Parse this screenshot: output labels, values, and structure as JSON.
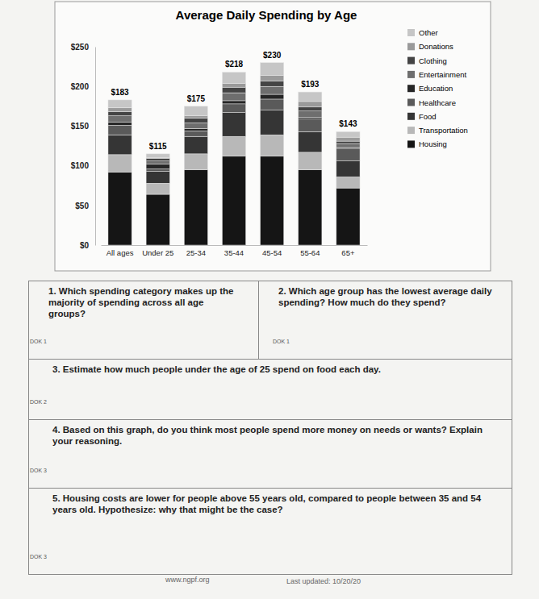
{
  "chart_data": {
    "type": "bar",
    "title": "Average Daily Spending by Age",
    "stacked": true,
    "grid": false,
    "legend": "right",
    "categories": [
      "All ages",
      "Under 25",
      "25-34",
      "35-44",
      "45-54",
      "55-64",
      "65+"
    ],
    "series": [
      {
        "name": "Housing",
        "color": "#151515",
        "values": [
          92,
          64,
          95,
          112,
          112,
          95,
          72
        ]
      },
      {
        "name": "Transportation",
        "color": "#b8b8b8",
        "values": [
          22,
          14,
          20,
          25,
          27,
          22,
          14
        ]
      },
      {
        "name": "Food",
        "color": "#353535",
        "values": [
          25,
          15,
          22,
          30,
          31,
          26,
          20
        ]
      },
      {
        "name": "Healthcare",
        "color": "#5a5a5a",
        "values": [
          12,
          3,
          7,
          11,
          14,
          16,
          16
        ]
      },
      {
        "name": "Education",
        "color": "#262626",
        "values": [
          4,
          6,
          3,
          4,
          6,
          2,
          1
        ]
      },
      {
        "name": "Entertainment",
        "color": "#6e6e6e",
        "values": [
          8,
          4,
          7,
          10,
          10,
          8,
          5
        ]
      },
      {
        "name": "Clothing",
        "color": "#444444",
        "values": [
          5,
          3,
          6,
          7,
          7,
          5,
          3
        ]
      },
      {
        "name": "Donations",
        "color": "#9a9a9a",
        "values": [
          5,
          1,
          3,
          5,
          7,
          7,
          5
        ]
      },
      {
        "name": "Other",
        "color": "#c6c6c6",
        "values": [
          10,
          5,
          12,
          14,
          16,
          12,
          7
        ]
      }
    ],
    "totals": [
      183,
      115,
      175,
      218,
      230,
      193,
      143
    ],
    "total_labels": [
      "$183",
      "$115",
      "$175",
      "$218",
      "$230",
      "$193",
      "$143"
    ],
    "ylim": [
      0,
      250
    ],
    "yticks": [
      {
        "value": 0,
        "label": "$0"
      },
      {
        "value": 50,
        "label": "$50"
      },
      {
        "value": 100,
        "label": "$100"
      },
      {
        "value": 150,
        "label": "$150"
      },
      {
        "value": 200,
        "label": "$200"
      },
      {
        "value": 250,
        "label": "$250"
      }
    ]
  },
  "questions": [
    {
      "text": "1. Which spending category makes up the majority of spending across all age groups?",
      "dok": "DOK 1"
    },
    {
      "text": "2. Which age group has the lowest average daily spending? How much do they spend?",
      "dok": "DOK 1"
    },
    {
      "text": "3. Estimate how much people under the age of 25 spend on food each day.",
      "dok": "DOK 2"
    },
    {
      "text": "4. Based on this graph, do you think most people spend more money on needs or wants? Explain your reasoning.",
      "dok": "DOK 3"
    },
    {
      "text": "5. Housing costs are lower for people above 55 years old, compared to people between 35 and 54 years old. Hypothesize: why that might be the case?",
      "dok": "DOK 3"
    }
  ],
  "footer": {
    "website": "www.ngpf.org",
    "updated": "Last updated: 10/20/20"
  }
}
